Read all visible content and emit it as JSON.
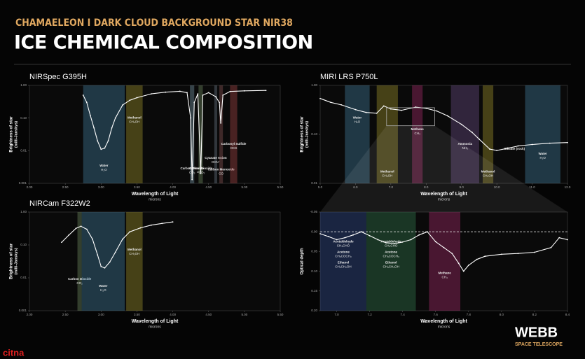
{
  "header": {
    "subtitle": "CHAMAELEON I DARK CLOUD BACKGROUND STAR NIR38",
    "title": "ICE CHEMICAL COMPOSITION"
  },
  "branding": {
    "name": "WEBB",
    "tagline": "SPACE TELESCOPE"
  },
  "watermark": "citna",
  "chart_data": [
    {
      "type": "line",
      "title": "NIRSpec G395H",
      "xlabel": "Wavelength of Light",
      "x_unit": "microns",
      "ylabel": "Brightness of star",
      "y_unit": "(milli-Janskys)",
      "log_y": true,
      "color": "#ffffff",
      "xlim": [
        2.0,
        5.5
      ],
      "xticks": [
        {
          "value": 2,
          "label": "2.00"
        },
        {
          "value": 2.5,
          "label": "2.50"
        },
        {
          "value": 3,
          "label": "3.00"
        },
        {
          "value": 3.5,
          "label": "3.50"
        },
        {
          "value": 4,
          "label": "4.00"
        },
        {
          "value": 4.5,
          "label": "4.50"
        },
        {
          "value": 5,
          "label": "5.00"
        },
        {
          "value": 5.5,
          "label": "5.50"
        }
      ],
      "ylim": [
        0.001,
        1
      ],
      "yticks": [
        {
          "value": 0.001,
          "label": "0.001"
        },
        {
          "value": 0.01,
          "label": "0.01"
        },
        {
          "value": 0.1,
          "label": "0.10"
        },
        {
          "value": 1,
          "label": "1.00"
        }
      ],
      "x": [
        2.75,
        2.8,
        2.85,
        2.9,
        2.95,
        3.0,
        3.05,
        3.1,
        3.15,
        3.2,
        3.3,
        3.4,
        3.5,
        3.7,
        3.9,
        4.1,
        4.2,
        4.25,
        4.27,
        4.3,
        4.35,
        4.39,
        4.42,
        4.5,
        4.6,
        4.65,
        4.67,
        4.7,
        4.8,
        5.0,
        5.3
      ],
      "values": [
        0.5,
        0.3,
        0.12,
        0.05,
        0.02,
        0.011,
        0.012,
        0.02,
        0.05,
        0.1,
        0.25,
        0.35,
        0.42,
        0.55,
        0.62,
        0.66,
        0.6,
        0.1,
        0.0013,
        0.3,
        0.55,
        0.002,
        0.5,
        0.6,
        0.45,
        0.3,
        0.07,
        0.5,
        0.65,
        0.68,
        0.7
      ],
      "bands": [
        {
          "xrange": [
            2.75,
            3.33
          ],
          "color": "#4a8fb5",
          "labels": [
            {
              "name": "Water",
              "formula": "H₂O"
            }
          ]
        },
        {
          "xrange": [
            3.35,
            3.58
          ],
          "color": "#b8a830",
          "labels": [
            {
              "name": "Methanol",
              "formula": "CH₃OH"
            }
          ]
        },
        {
          "xrange": [
            4.24,
            4.3
          ],
          "color": "#8ab0c0",
          "labels": [
            {
              "name": "Carbon Dioxide",
              "formula": "CO₂"
            }
          ]
        },
        {
          "xrange": [
            4.36,
            4.42
          ],
          "color": "#80a070",
          "labels": [
            {
              "name": "Carbon Dioxide",
              "formula": "¹³CO₂"
            }
          ]
        },
        {
          "xrange": [
            4.58,
            4.62
          ],
          "color": "#7a8a9a",
          "labels": [
            {
              "name": "Cyanate Anion",
              "formula": "OCN⁻"
            }
          ]
        },
        {
          "xrange": [
            4.65,
            4.7
          ],
          "color": "#a06060",
          "labels": [
            {
              "name": "Carbon Monoxide",
              "formula": "CO"
            }
          ]
        },
        {
          "xrange": [
            4.8,
            4.9
          ],
          "color": "#c05050",
          "labels": [
            {
              "name": "Carbonyl Sulfide",
              "formula": "OCS"
            }
          ]
        }
      ]
    },
    {
      "type": "line",
      "title": "NIRCam F322W2",
      "xlabel": "Wavelength of Light",
      "x_unit": "microns",
      "ylabel": "Brightness of star",
      "y_unit": "(milli-Janskys)",
      "log_y": true,
      "color": "#ffffff",
      "xlim": [
        2.0,
        5.5
      ],
      "xticks": [
        {
          "value": 2,
          "label": "2.00"
        },
        {
          "value": 2.5,
          "label": "2.50"
        },
        {
          "value": 3,
          "label": "3.00"
        },
        {
          "value": 3.5,
          "label": "3.50"
        },
        {
          "value": 4,
          "label": "4.00"
        },
        {
          "value": 4.5,
          "label": "4.50"
        },
        {
          "value": 5,
          "label": "5.00"
        },
        {
          "value": 5.5,
          "label": "5.50"
        }
      ],
      "ylim": [
        0.001,
        1
      ],
      "yticks": [
        {
          "value": 0.001,
          "label": "0.001"
        },
        {
          "value": 0.01,
          "label": "0.01"
        },
        {
          "value": 0.1,
          "label": "0.10"
        },
        {
          "value": 1,
          "label": "1.00"
        }
      ],
      "x": [
        2.45,
        2.55,
        2.65,
        2.72,
        2.8,
        2.88,
        2.95,
        3.0,
        3.05,
        3.12,
        3.2,
        3.3,
        3.4,
        3.55,
        3.7,
        3.85,
        4.0
      ],
      "values": [
        0.12,
        0.2,
        0.32,
        0.37,
        0.3,
        0.15,
        0.05,
        0.022,
        0.02,
        0.03,
        0.06,
        0.15,
        0.25,
        0.33,
        0.4,
        0.45,
        0.5
      ],
      "bands": [
        {
          "xrange": [
            2.67,
            2.73
          ],
          "color": "#80a070",
          "labels": [
            {
              "name": "Carbon Dioxide",
              "formula": "CO₂"
            }
          ]
        },
        {
          "xrange": [
            2.73,
            3.33
          ],
          "color": "#4a8fb5",
          "labels": [
            {
              "name": "Water",
              "formula": "H₂O"
            }
          ]
        },
        {
          "xrange": [
            3.35,
            3.58
          ],
          "color": "#b8a830",
          "labels": [
            {
              "name": "Methanol",
              "formula": "CH₃OH"
            }
          ]
        }
      ]
    },
    {
      "type": "line",
      "title": "MIRI LRS P750L",
      "xlabel": "Wavelength of Light",
      "x_unit": "microns",
      "ylabel": "Brightness of star",
      "y_unit": "(milli-Janskys)",
      "log_y": true,
      "color": "#ffffff",
      "xlim": [
        5,
        12
      ],
      "xticks": [
        {
          "value": 5,
          "label": "5.0"
        },
        {
          "value": 6,
          "label": "6.0"
        },
        {
          "value": 7,
          "label": "7.0"
        },
        {
          "value": 8,
          "label": "8.0"
        },
        {
          "value": 9,
          "label": "9.0"
        },
        {
          "value": 10,
          "label": "10.0"
        },
        {
          "value": 11,
          "label": "11.0"
        },
        {
          "value": 12,
          "label": "12.0"
        }
      ],
      "ylim": [
        0.01,
        1
      ],
      "yticks": [
        {
          "value": 0.01,
          "label": "0.01"
        },
        {
          "value": 0.1,
          "label": "0.10"
        },
        {
          "value": 1,
          "label": "1.00"
        }
      ],
      "x": [
        5.0,
        5.3,
        5.6,
        6.0,
        6.3,
        6.6,
        6.8,
        7.0,
        7.3,
        7.7,
        8.0,
        8.3,
        8.6,
        9.0,
        9.3,
        9.5,
        9.8,
        10.0,
        10.3,
        10.6,
        11.0,
        11.5,
        12.0
      ],
      "values": [
        0.54,
        0.45,
        0.4,
        0.32,
        0.28,
        0.27,
        0.38,
        0.33,
        0.31,
        0.36,
        0.34,
        0.3,
        0.24,
        0.16,
        0.11,
        0.08,
        0.05,
        0.047,
        0.052,
        0.058,
        0.062,
        0.066,
        0.068
      ],
      "bands": [
        {
          "xrange": [
            5.7,
            6.4
          ],
          "color": "#4a8fb5",
          "labels": [
            {
              "name": "Water",
              "formula": "H₂O"
            }
          ]
        },
        {
          "xrange": [
            6.6,
            7.2
          ],
          "color": "#b8a830",
          "labels": [
            {
              "name": "Methanol",
              "formula": "CH₃OH"
            }
          ]
        },
        {
          "xrange": [
            7.6,
            7.9
          ],
          "color": "#c0307a",
          "labels": [
            {
              "name": "Methane",
              "formula": "CH₄"
            }
          ]
        },
        {
          "xrange": [
            8.7,
            9.5
          ],
          "color": "#7a5a9a",
          "labels": [
            {
              "name": "Ammonia",
              "formula": "NH₃"
            }
          ]
        },
        {
          "xrange": [
            9.6,
            9.9
          ],
          "color": "#b8a830",
          "labels": [
            {
              "name": "Methanol",
              "formula": "CH₃OH"
            }
          ]
        },
        {
          "xrange": [
            10.2,
            10.8
          ],
          "color": "none",
          "labels": [
            {
              "name": "Silicate (rock)"
            }
          ]
        },
        {
          "xrange": [
            10.8,
            11.8
          ],
          "color": "#4a8fb5",
          "labels": [
            {
              "name": "Water",
              "formula": "H₂O"
            }
          ]
        }
      ],
      "zoom": {
        "xrange": [
          6.88,
          8.24
        ],
        "yrange": [
          0.15,
          0.35
        ]
      }
    },
    {
      "type": "line",
      "xlabel": "Wavelength of Light",
      "x_unit": "microns",
      "ylabel": "Optical depth",
      "color": "#ffffff",
      "xlim": [
        6.9,
        8.4
      ],
      "xticks": [
        {
          "value": 7,
          "label": "7.0"
        },
        {
          "value": 7.2,
          "label": "7.2"
        },
        {
          "value": 7.4,
          "label": "7.4"
        },
        {
          "value": 7.6,
          "label": "7.6"
        },
        {
          "value": 7.8,
          "label": "7.8"
        },
        {
          "value": 8,
          "label": "8.0"
        },
        {
          "value": 8.2,
          "label": "8.2"
        },
        {
          "value": 8.4,
          "label": "8.4"
        }
      ],
      "ylim": [
        0.2,
        -0.05
      ],
      "yticks": [
        {
          "value": -0.05,
          "label": "-0.05"
        },
        {
          "value": 0,
          "label": "0.00"
        },
        {
          "value": 0.05,
          "label": "0.05"
        },
        {
          "value": 0.1,
          "label": "0.10"
        },
        {
          "value": 0.15,
          "label": "0.15"
        },
        {
          "value": 0.2,
          "label": "0.20"
        }
      ],
      "reference_line": 0,
      "x": [
        6.9,
        6.95,
        7.0,
        7.05,
        7.1,
        7.15,
        7.2,
        7.25,
        7.3,
        7.35,
        7.4,
        7.45,
        7.5,
        7.55,
        7.6,
        7.65,
        7.7,
        7.74,
        7.77,
        7.8,
        7.85,
        7.9,
        8.0,
        8.1,
        8.2,
        8.3,
        8.35,
        8.4
      ],
      "values": [
        0.005,
        0.012,
        0.02,
        0.015,
        0.008,
        0.0,
        0.01,
        0.02,
        0.028,
        0.03,
        0.026,
        0.02,
        0.008,
        0.0,
        0.025,
        0.04,
        0.055,
        0.08,
        0.1,
        0.085,
        0.07,
        0.062,
        0.057,
        0.055,
        0.052,
        0.04,
        0.015,
        0.02
      ],
      "bands": [
        {
          "xrange": [
            6.9,
            7.18
          ],
          "color": "#3a5aa8",
          "labels": [
            {
              "name": "Acetaldehyde",
              "formula": "CH₃CHO"
            },
            {
              "name": "Acetone",
              "formula": "CH₃COCH₃"
            },
            {
              "name": "Ethanol",
              "formula": "CH₃CH₂OH"
            }
          ]
        },
        {
          "xrange": [
            7.18,
            7.48
          ],
          "color": "#3a8a5a",
          "labels": [
            {
              "name": "Acetaldehyde",
              "formula": "CH₃CHO"
            },
            {
              "name": "Acetone",
              "formula": "CH₃COCH₃"
            },
            {
              "name": "Ethanol",
              "formula": "CH₃CH₂OH"
            }
          ]
        },
        {
          "xrange": [
            7.56,
            7.75
          ],
          "color": "#c0307a",
          "labels": [
            {
              "name": "Methane",
              "formula": "CH₄"
            }
          ]
        }
      ]
    }
  ]
}
